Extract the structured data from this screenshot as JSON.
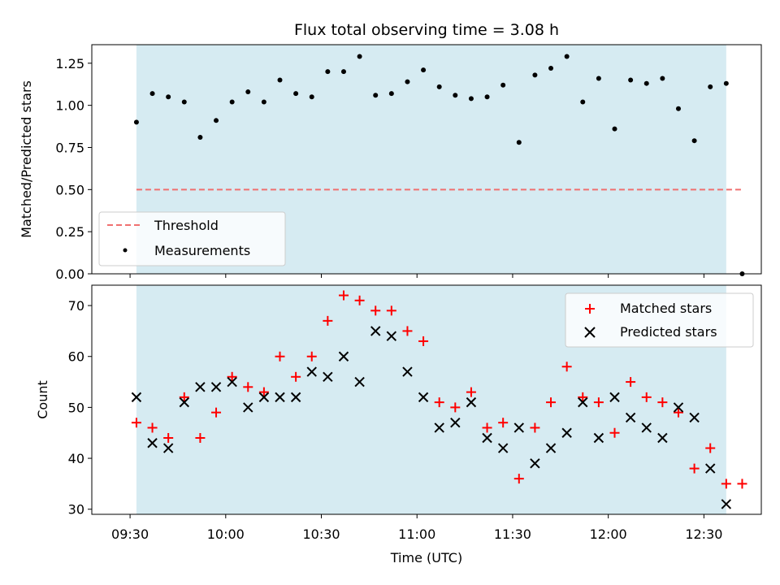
{
  "chart_data": {
    "type": "scatter",
    "title": "Flux total observing time = 3.08 h",
    "xlabel": "Time (UTC)",
    "x_ticks": [
      "09:30",
      "10:00",
      "10:30",
      "11:00",
      "11:30",
      "12:00",
      "12:30"
    ],
    "x_range": [
      "09:18",
      "12:48"
    ],
    "shaded_interval": [
      "09:32",
      "12:37"
    ],
    "panels": [
      {
        "ylabel": "Matched/Predicted stars",
        "ylim": [
          0,
          1.36
        ],
        "y_ticks": [
          "0.00",
          "0.25",
          "0.50",
          "0.75",
          "1.00",
          "1.25"
        ],
        "legend_position": "lower-left",
        "threshold": {
          "name": "Threshold",
          "value": 0.5,
          "x_range": [
            "09:32",
            "12:42"
          ],
          "color": "#f07070"
        },
        "series": [
          {
            "name": "Measurements",
            "color": "#000000",
            "marker": "dot",
            "x": [
              "09:32",
              "09:37",
              "09:42",
              "09:47",
              "09:52",
              "09:57",
              "10:02",
              "10:07",
              "10:12",
              "10:17",
              "10:22",
              "10:27",
              "10:32",
              "10:37",
              "10:42",
              "10:47",
              "10:52",
              "10:57",
              "11:02",
              "11:07",
              "11:12",
              "11:17",
              "11:22",
              "11:27",
              "11:32",
              "11:37",
              "11:42",
              "11:47",
              "11:52",
              "11:57",
              "12:02",
              "12:07",
              "12:12",
              "12:17",
              "12:22",
              "12:27",
              "12:32",
              "12:37",
              "12:42"
            ],
            "y": [
              0.9,
              1.07,
              1.05,
              1.02,
              0.81,
              0.91,
              1.02,
              1.08,
              1.02,
              1.15,
              1.07,
              1.05,
              1.2,
              1.2,
              1.29,
              1.06,
              1.07,
              1.14,
              1.21,
              1.11,
              1.06,
              1.04,
              1.05,
              1.12,
              0.78,
              1.18,
              1.22,
              1.29,
              1.02,
              1.16,
              0.86,
              1.15,
              1.13,
              1.16,
              0.98,
              0.79,
              1.11,
              1.13,
              0.0
            ]
          }
        ]
      },
      {
        "ylabel": "Count",
        "ylim": [
          29,
          74
        ],
        "y_ticks": [
          "30",
          "40",
          "50",
          "60",
          "70"
        ],
        "legend_position": "upper-right",
        "series": [
          {
            "name": "Matched stars",
            "color": "#ff0000",
            "marker": "plus",
            "x": [
              "09:32",
              "09:37",
              "09:42",
              "09:47",
              "09:52",
              "09:57",
              "10:02",
              "10:07",
              "10:12",
              "10:17",
              "10:22",
              "10:27",
              "10:32",
              "10:37",
              "10:42",
              "10:47",
              "10:52",
              "10:57",
              "11:02",
              "11:07",
              "11:12",
              "11:17",
              "11:22",
              "11:27",
              "11:32",
              "11:37",
              "11:42",
              "11:47",
              "11:52",
              "11:57",
              "12:02",
              "12:07",
              "12:12",
              "12:17",
              "12:22",
              "12:27",
              "12:32",
              "12:37",
              "12:42"
            ],
            "y": [
              47,
              46,
              44,
              52,
              44,
              49,
              56,
              54,
              53,
              60,
              56,
              60,
              67,
              72,
              71,
              69,
              69,
              65,
              63,
              51,
              50,
              53,
              46,
              47,
              36,
              46,
              51,
              58,
              52,
              51,
              45,
              55,
              52,
              51,
              49,
              38,
              42,
              35,
              35
            ]
          },
          {
            "name": "Predicted stars",
            "color": "#000000",
            "marker": "x",
            "x": [
              "09:32",
              "09:37",
              "09:42",
              "09:47",
              "09:52",
              "09:57",
              "10:02",
              "10:07",
              "10:12",
              "10:17",
              "10:22",
              "10:27",
              "10:32",
              "10:37",
              "10:42",
              "10:47",
              "10:52",
              "10:57",
              "11:02",
              "11:07",
              "11:12",
              "11:17",
              "11:22",
              "11:27",
              "11:32",
              "11:37",
              "11:42",
              "11:47",
              "11:52",
              "11:57",
              "12:02",
              "12:07",
              "12:12",
              "12:17",
              "12:22",
              "12:27",
              "12:32",
              "12:37"
            ],
            "y": [
              52,
              43,
              42,
              51,
              54,
              54,
              55,
              50,
              52,
              52,
              52,
              57,
              56,
              60,
              55,
              65,
              64,
              57,
              52,
              46,
              47,
              51,
              44,
              42,
              46,
              39,
              42,
              45,
              51,
              44,
              52,
              48,
              46,
              44,
              50,
              48,
              38,
              31
            ]
          }
        ]
      }
    ]
  }
}
